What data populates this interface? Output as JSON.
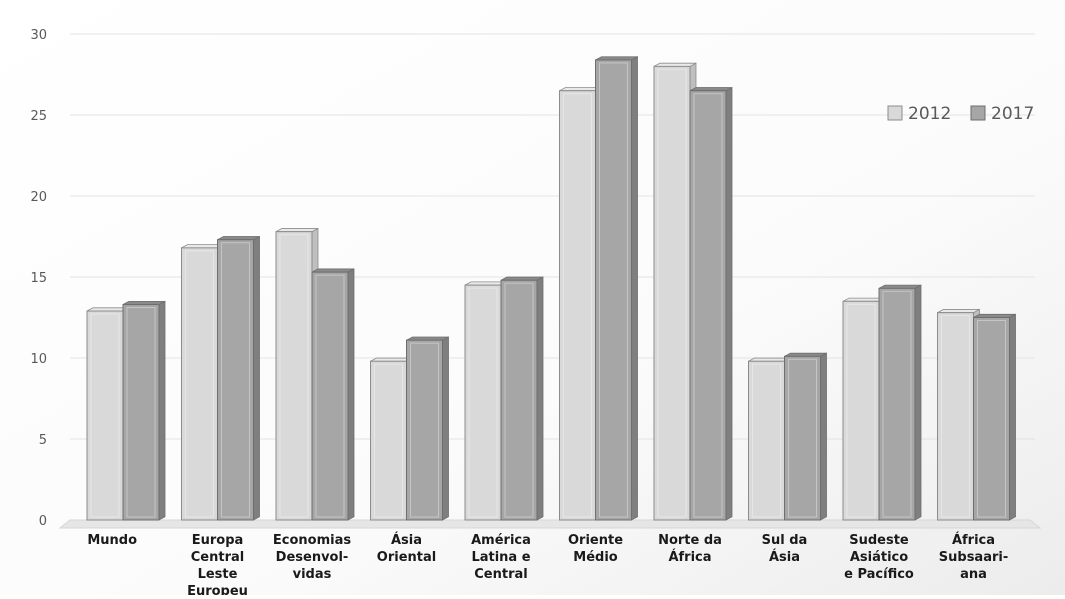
{
  "chart_data": {
    "type": "bar",
    "categories": [
      [
        "Mundo"
      ],
      [
        "Europa",
        "Central",
        "Leste",
        "Europeu"
      ],
      [
        "Economias",
        "Desenvol-",
        "vidas"
      ],
      [
        "Ásia",
        "Oriental"
      ],
      [
        "América",
        "Latina e",
        "Central"
      ],
      [
        "Oriente",
        "Médio"
      ],
      [
        "Norte da",
        "África"
      ],
      [
        "Sul da",
        "Ásia"
      ],
      [
        "Sudeste",
        "Asiático",
        "e Pacífico"
      ],
      [
        "África",
        "Subsaari-",
        "ana"
      ]
    ],
    "series": [
      {
        "name": "2012",
        "values": [
          12.9,
          16.8,
          17.8,
          9.8,
          14.5,
          26.5,
          28.0,
          9.8,
          13.5,
          12.8
        ]
      },
      {
        "name": "2017",
        "values": [
          13.3,
          17.3,
          15.3,
          11.1,
          14.8,
          28.4,
          26.5,
          10.1,
          14.3,
          12.5
        ]
      }
    ],
    "yticks": [
      "0",
      "5",
      "10",
      "15",
      "20",
      "25",
      "30"
    ],
    "ylim": [
      0,
      30
    ],
    "grid": true,
    "legend_position": "top-right",
    "colors": {
      "series_2012": "#d9d9d9",
      "series_2017": "#a6a6a6",
      "grid": "#e3e3e3",
      "axis_text": "#595959"
    }
  }
}
